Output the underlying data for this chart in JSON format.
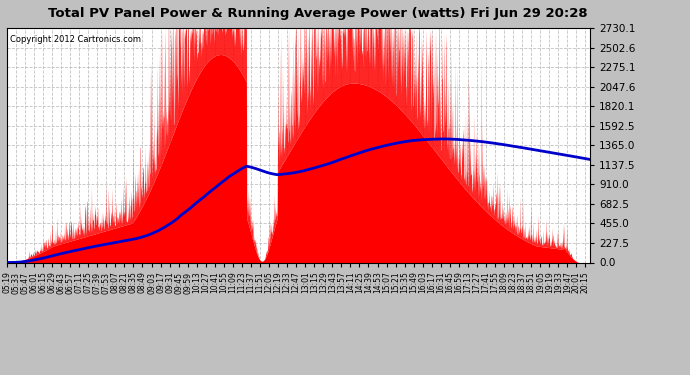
{
  "title": "Total PV Panel Power & Running Average Power (watts) Fri Jun 29 20:28",
  "copyright": "Copyright 2012 Cartronics.com",
  "yticks": [
    0.0,
    227.5,
    455.0,
    682.5,
    910.0,
    1137.5,
    1365.0,
    1592.5,
    1820.1,
    2047.6,
    2275.1,
    2502.6,
    2730.1
  ],
  "ymax": 2730.1,
  "ymin": 0.0,
  "x_start_min": 319,
  "x_end_min": 1222,
  "fill_color": "#ff0000",
  "line_color": "#0000cc",
  "grid_color": "#bbbbbb",
  "bg_color": "#c0c0c0",
  "plot_bg": "#ffffff",
  "tick_interval_min": 14
}
